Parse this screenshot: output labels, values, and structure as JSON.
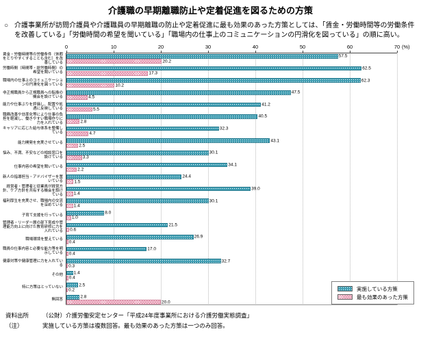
{
  "page": {
    "title": "介護職の早期離職防止や定着促進を図るための方策",
    "lead_bullet": "○",
    "lead_text": "介護事業所が訪問介護員や介護職員の早期離職の防止や定着促進に最も効果のあった方策としては、「賃金・労働時間等の労働条件を改善している」「労働時間の希望を聞いている」「職場内の仕事上のコミュニケーションの円滑化を図っている」の順に高い。"
  },
  "chart_data": {
    "type": "bar",
    "orientation": "horizontal",
    "title": "介護職の早期離職防止や定着促進を図るための方策",
    "xlabel": "",
    "ylabel": "",
    "unit": "(%)",
    "xlim": [
      0,
      70
    ],
    "x_ticks": [
      0,
      10,
      20,
      30,
      40,
      50,
      60,
      70
    ],
    "grid": true,
    "legend_position": "bottom-right",
    "categories": [
      "賃金・労働時間等の労働条件（休暇をとりやすくすることも含む）を改善している",
      "労働時間（時間帯・総労働時間）の希望を聞いている",
      "職場内の仕事上のコミュニケーションの円滑化を図っている",
      "非正規職員から正規職員への転換の機会を設けている",
      "能力や仕事ぶりを評価し、配置や処遇に反映している",
      "職務改善や効率化等により仕事の負担を軽減し、働きやすい職場作りに力を入れている",
      "キャリアに応じた給与体系を整備している",
      "能力開発を充実させている",
      "悩み、不満、不安などの相談窓口を設けている",
      "仕事内容の希望を聞いている",
      "新人の指導担当・アドバイザーを置いている",
      "経営者・管理者と従業員が経営方針、ケア方針を共有する機会を設けている",
      "福利厚生を充実させ、職場内の交流を深めている",
      "子育て支援を行っている",
      "管理者・リーダー層の部下育成や管理能力向上に向けた教育研修に力を入れている",
      "職場環境を整えている",
      "職員の仕事内容と必要な能力等を明示している",
      "健康対策や健康管理に力を入れている",
      "その他",
      "特に方策はとっていない",
      "無回答"
    ],
    "series": [
      {
        "name": "実施している方策",
        "color": "#3f9db2",
        "border_color": "#2a7d91",
        "values": [
          57.5,
          62.5,
          62.3,
          47.5,
          41.2,
          40.5,
          32.3,
          43.1,
          30.1,
          34.1,
          24.4,
          39.0,
          30.1,
          8.0,
          21.5,
          26.9,
          17.0,
          32.7,
          1.4,
          2.5,
          2.8
        ]
      },
      {
        "name": "最も効果のあった方策",
        "color": "#e493ad",
        "border_color": "#d3869e",
        "values": [
          20.2,
          17.3,
          10.2,
          4.5,
          5.5,
          2.8,
          4.7,
          2.5,
          3.3,
          2.2,
          1.5,
          1.4,
          1.4,
          1.0,
          0.6,
          0.4,
          0.4,
          0.3,
          0.4,
          0.2,
          20.0
        ]
      }
    ]
  },
  "footer": {
    "source_label": "資料出所",
    "source_text": "（公財）介護労働安定センター「平成24年度事業所における介護労働実態調査」",
    "note_label": "（注）",
    "note_text": "実施している方策は複数回答。最も効果のあった方策は一つのみ回答。"
  }
}
